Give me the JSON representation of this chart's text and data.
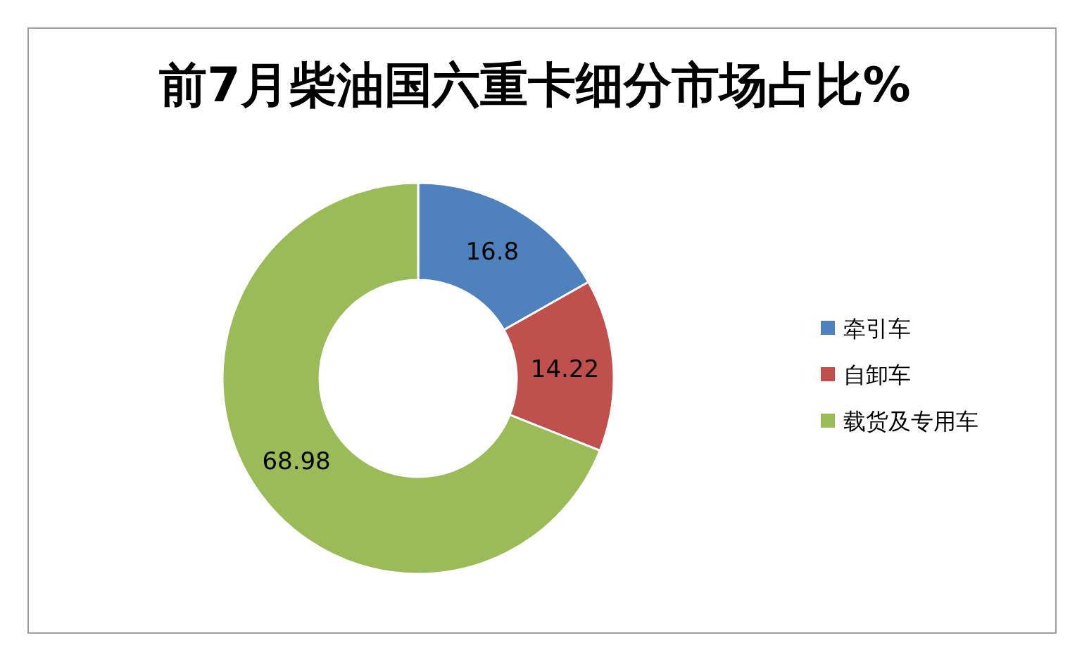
{
  "chart_data": {
    "type": "donut",
    "title": "前7月柴油国六重卡细分市场占比%",
    "categories": [
      "牵引车",
      "自卸车",
      "载货及专用车"
    ],
    "values": [
      16.8,
      14.22,
      68.98
    ],
    "colors": [
      "#4f81bd",
      "#c0504d",
      "#9bbb59"
    ],
    "data_labels": true,
    "legend": "right"
  }
}
